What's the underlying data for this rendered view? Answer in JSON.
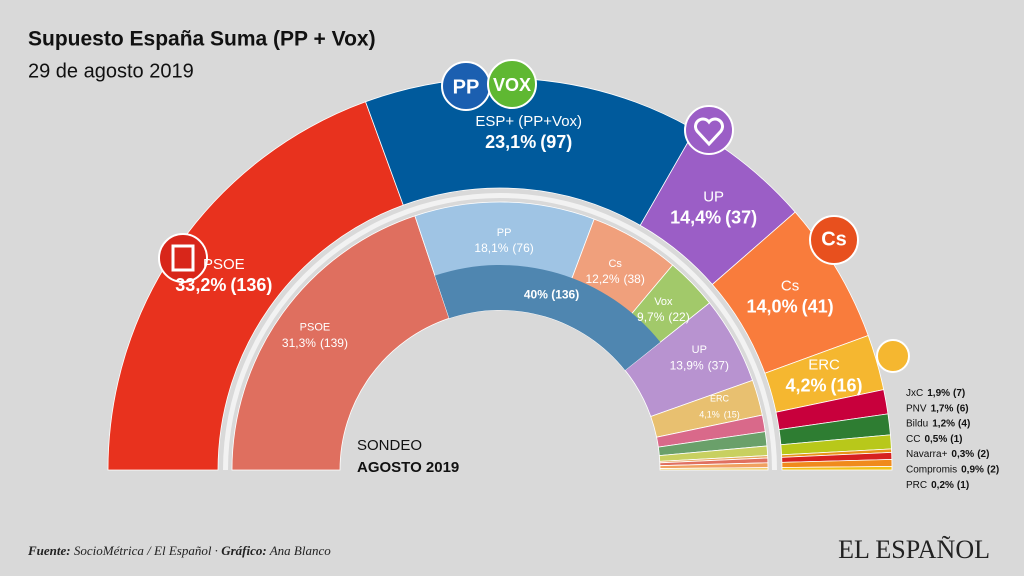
{
  "chart_data": {
    "type": "parliament",
    "title": "Supuesto España Suma (PP + Vox)",
    "subtitle": "29 de agosto 2019",
    "center_labels": [
      "SONDEO",
      "AGOSTO 2019"
    ],
    "logos": {
      "pp": "PP",
      "vox": "VOX",
      "cs": "Cs"
    },
    "rings": [
      {
        "categories": [
          "PSOE",
          "ESP+ (PP+Vox)",
          "UP",
          "Cs",
          "ERC",
          "JxC",
          "PNV",
          "Bildu",
          "CC",
          "Navarra+",
          "Compromis",
          "PRC"
        ],
        "values": [
          136,
          97,
          37,
          41,
          16,
          7,
          6,
          4,
          1,
          2,
          2,
          1
        ],
        "value_labels": [
          "(136)",
          "(97)",
          "(37)",
          "(41)",
          "(16)",
          "(7)",
          "(6)",
          "(4)",
          "(1)",
          "(2)",
          "(2)",
          "(1)"
        ],
        "percent": [
          33.2,
          23.1,
          14.4,
          14.0,
          4.2,
          1.9,
          1.7,
          1.2,
          0.5,
          0.3,
          0.9,
          0.2
        ],
        "percent_labels": [
          "33,2%",
          "23,1%",
          "14,4%",
          "14,0%",
          "4,2%",
          "1,9%",
          "1,7%",
          "1,2%",
          "0,5%",
          "0,3%",
          "0,9%",
          "0,2%"
        ],
        "colors": [
          "#e8321e",
          "#005a9c",
          "#9b5ec6",
          "#f97c3c",
          "#f5b730",
          "#c8003c",
          "#2e7d32",
          "#b8c81a",
          "#e8941a",
          "#d62020",
          "#f08a1c",
          "#f2c21a"
        ]
      },
      {
        "categories": [
          "PSOE",
          "PP",
          "Cs",
          "Vox",
          "UP",
          "ERC",
          null,
          null,
          null,
          null,
          null,
          null,
          null
        ],
        "values": [
          139,
          76,
          38,
          22,
          37,
          15,
          7,
          6,
          4,
          1,
          2,
          2,
          1
        ],
        "value_labels": [
          "(139)",
          "(76)",
          "(38)",
          "(22)",
          "(37)",
          "(15)",
          null,
          null,
          null,
          null,
          null,
          null,
          null
        ],
        "percent": [
          31.3,
          18.1,
          12.2,
          9.7,
          13.9,
          4.1,
          null,
          null,
          null,
          null,
          null,
          null,
          null
        ],
        "percent_labels": [
          "31,3%",
          "18,1%",
          "12,2%",
          "9,7%",
          "13,9%",
          "4,1%",
          null,
          null,
          null,
          null,
          null,
          null,
          null
        ],
        "colors": [
          "#df6f5f",
          "#9fc4e4",
          "#f0a07c",
          "#a2c96a",
          "#b893d0",
          "#e8c070",
          "#d9698a",
          "#6aa06a",
          "#c8d060",
          "#e8a860",
          "#e07060",
          "#f0a060",
          "#f0d070"
        ]
      }
    ],
    "bloc": {
      "percent": 40,
      "seats": 136,
      "label": "40% (136)",
      "color": "#4f86b0"
    },
    "source_label": "Fuente:",
    "source": "SocioMétrica / El Español ·",
    "graphic_label": "Gráfico:",
    "graphic": "Ana Blanco",
    "brand": "EL ESPAÑOL"
  }
}
